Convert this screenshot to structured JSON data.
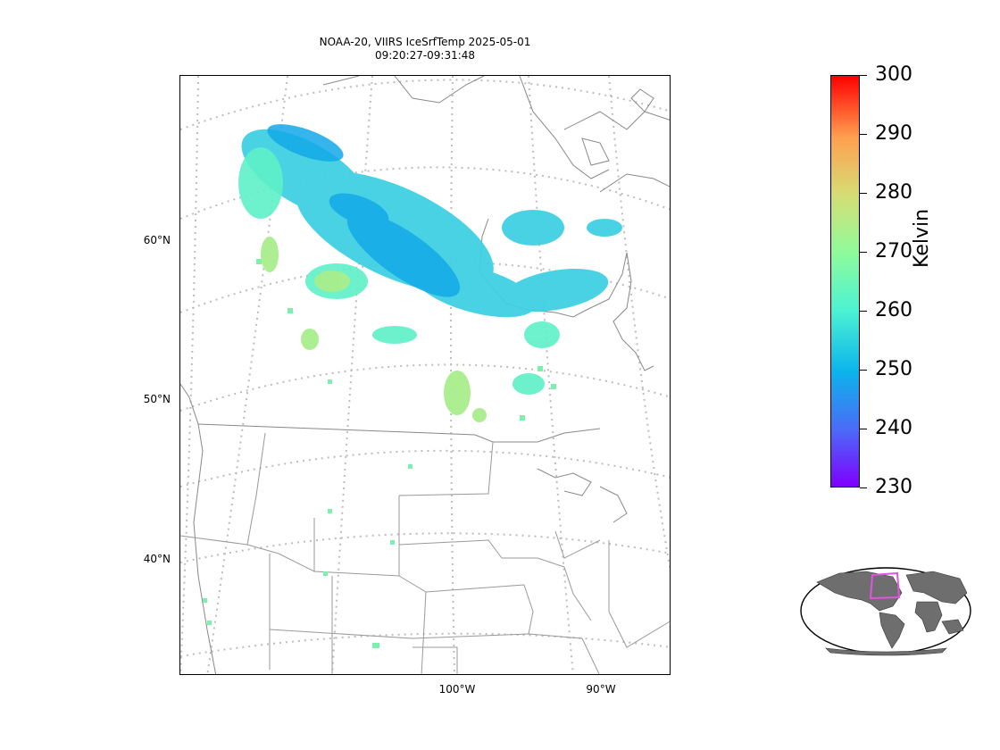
{
  "title": {
    "line1": "NOAA-20, VIIRS IceSrfTemp 2025-05-01",
    "line2": "09:20:27-09:31:48"
  },
  "map": {
    "lat_labels": [
      "60°N",
      "50°N",
      "40°N"
    ],
    "lon_labels": [
      "100°W",
      "90°W"
    ]
  },
  "colorbar": {
    "label": "Kelvin",
    "min": 230,
    "max": 300,
    "ticks": [
      "300",
      "290",
      "280",
      "270",
      "260",
      "250",
      "240",
      "230"
    ],
    "colormap": [
      "#7f00ff",
      "#4a6cf7",
      "#0bb4ec",
      "#4df3d2",
      "#8ffb9b",
      "#d6dd75",
      "#ffa050",
      "#ff0000"
    ]
  },
  "inset": {
    "icon": "globe-locator-icon",
    "highlight_color": "#e055e0",
    "land_color": "#6e6e6e"
  }
}
